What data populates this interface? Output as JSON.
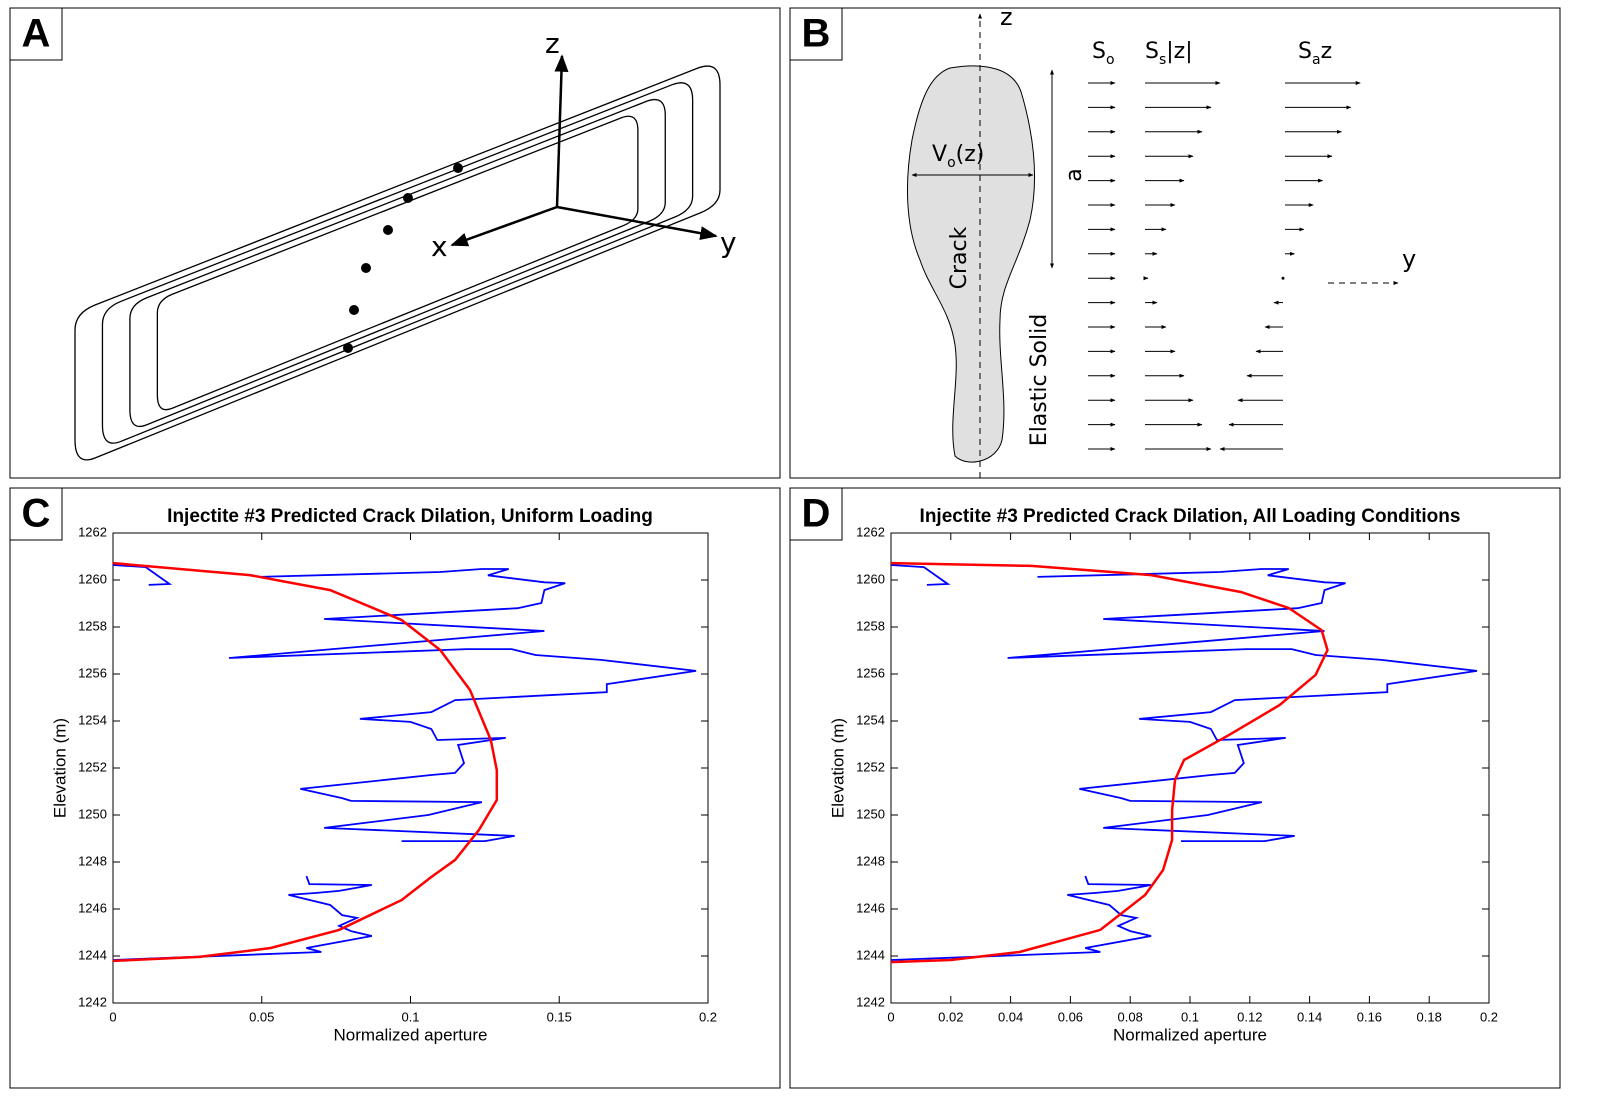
{
  "panels": {
    "a": {
      "label": "A",
      "z": "z",
      "x": "x",
      "y": "y"
    },
    "b": {
      "label": "B",
      "z": "z",
      "y": "y",
      "a": "a",
      "crack": "Crack",
      "solid": "Elastic Solid",
      "v": {
        "base": "V",
        "sub": "o",
        "tail": "(z)"
      },
      "s_o": {
        "base": "S",
        "sub": "o"
      },
      "s_s": {
        "base": "S",
        "sub": "s",
        "tail": "|z|"
      },
      "s_a": {
        "base": "S",
        "sub": "a",
        "tail": "z"
      }
    },
    "c": {
      "label": "C"
    },
    "d": {
      "label": "D"
    }
  },
  "chart_data": [
    {
      "type": "line",
      "title": "Injectite #3 Predicted Crack Dilation, Uniform Loading",
      "xlabel": "Normalized aperture",
      "ylabel": "Elevation (m)",
      "xlim": [
        0,
        0.2
      ],
      "ylim": [
        1242,
        1262
      ],
      "xticks": [
        0,
        0.05,
        0.1,
        0.15,
        0.2
      ],
      "yticks": [
        1242,
        1244,
        1246,
        1248,
        1250,
        1252,
        1254,
        1256,
        1258,
        1260,
        1262
      ],
      "series": [
        {
          "color": "#0000ff",
          "x": [
            0,
            0.011,
            0.019,
            0.012,
            null,
            0.049,
            0.11,
            0.124,
            0.133,
            0.126,
            0.145,
            0.152,
            0.145,
            0.144,
            0.136,
            0.071,
            0.145,
            0.039,
            0.119,
            0.134,
            0.142,
            0.164,
            0.196,
            0.166,
            0.166,
            0.115,
            0.107,
            0.083,
            0.1,
            0.107,
            0.109,
            0.132,
            0.116,
            0.118,
            0.115,
            0.107,
            0.063,
            0.077,
            0.08,
            0.124,
            0.106,
            0.071,
            0.135,
            0.125,
            0.097,
            null,
            0.065,
            0.066,
            0.087,
            0.076,
            0.068,
            0.059,
            0.073,
            0.077,
            0.082,
            0.076,
            0.08,
            0.087,
            0.065,
            0.07,
            0
          ],
          "values": [
            1260.64,
            1260.55,
            1259.83,
            1259.79,
            null,
            1260.13,
            1260.34,
            1260.47,
            1260.47,
            1260.2,
            1259.9,
            1259.87,
            1259.57,
            1259.02,
            1258.8,
            1258.34,
            1257.83,
            1256.68,
            1257.06,
            1257.06,
            1256.81,
            1256.6,
            1256.13,
            1255.57,
            1255.23,
            1254.89,
            1254.38,
            1254.09,
            1253.96,
            1253.66,
            1253.19,
            1253.28,
            1252.98,
            1252.21,
            1251.79,
            1251.7,
            1251.11,
            1250.72,
            1250.6,
            1250.55,
            1250.0,
            1249.45,
            1249.11,
            1248.89,
            1248.89,
            null,
            1247.4,
            1247.06,
            1247.02,
            1246.77,
            1246.68,
            1246.6,
            1246.17,
            1245.74,
            1245.62,
            1245.28,
            1245.06,
            1244.85,
            1244.34,
            1244.17,
            1243.83
          ]
        },
        {
          "color": "#ff0000",
          "x": [
            0,
            0.046,
            0.073,
            0.097,
            0.11,
            0.12,
            0.127,
            0.129,
            0.129,
            0.123,
            0.115,
            0.107,
            0.097,
            0.076,
            0.053,
            0.029,
            0
          ],
          "values": [
            1260.72,
            1260.21,
            1259.57,
            1258.3,
            1257.02,
            1255.32,
            1253.19,
            1251.91,
            1250.64,
            1249.36,
            1248.09,
            1247.36,
            1246.38,
            1245.11,
            1244.34,
            1243.96,
            1243.79
          ]
        }
      ]
    },
    {
      "type": "line",
      "title": "Injectite #3 Predicted Crack Dilation, All Loading Conditions",
      "xlabel": "Normalized aperture",
      "ylabel": "Elevation (m)",
      "xlim": [
        0,
        0.2
      ],
      "ylim": [
        1242,
        1262
      ],
      "xticks": [
        0,
        0.02,
        0.04,
        0.06,
        0.08,
        0.1,
        0.12,
        0.14,
        0.16,
        0.18,
        0.2
      ],
      "yticks": [
        1242,
        1244,
        1246,
        1248,
        1250,
        1252,
        1254,
        1256,
        1258,
        1260,
        1262
      ],
      "series": [
        {
          "color": "#0000ff",
          "x": [
            0,
            0.011,
            0.019,
            0.012,
            null,
            0.049,
            0.11,
            0.124,
            0.133,
            0.126,
            0.145,
            0.152,
            0.145,
            0.144,
            0.136,
            0.071,
            0.145,
            0.039,
            0.119,
            0.134,
            0.142,
            0.164,
            0.196,
            0.166,
            0.166,
            0.115,
            0.107,
            0.083,
            0.1,
            0.107,
            0.109,
            0.132,
            0.116,
            0.118,
            0.115,
            0.107,
            0.063,
            0.077,
            0.08,
            0.124,
            0.106,
            0.071,
            0.135,
            0.125,
            0.097,
            null,
            0.065,
            0.066,
            0.087,
            0.076,
            0.068,
            0.059,
            0.073,
            0.077,
            0.082,
            0.076,
            0.08,
            0.087,
            0.065,
            0.07,
            0
          ],
          "values": [
            1260.64,
            1260.55,
            1259.83,
            1259.79,
            null,
            1260.13,
            1260.34,
            1260.47,
            1260.47,
            1260.2,
            1259.9,
            1259.87,
            1259.57,
            1259.02,
            1258.8,
            1258.34,
            1257.83,
            1256.68,
            1257.06,
            1257.06,
            1256.81,
            1256.6,
            1256.13,
            1255.57,
            1255.23,
            1254.89,
            1254.38,
            1254.09,
            1253.96,
            1253.66,
            1253.19,
            1253.28,
            1252.98,
            1252.21,
            1251.79,
            1251.7,
            1251.11,
            1250.72,
            1250.6,
            1250.55,
            1250.0,
            1249.45,
            1249.11,
            1248.89,
            1248.89,
            null,
            1247.4,
            1247.06,
            1247.02,
            1246.77,
            1246.68,
            1246.6,
            1246.17,
            1245.74,
            1245.62,
            1245.28,
            1245.06,
            1244.85,
            1244.34,
            1244.17,
            1243.83
          ]
        },
        {
          "color": "#ff0000",
          "x": [
            0,
            0.047,
            0.087,
            0.117,
            0.133,
            0.144,
            0.146,
            0.142,
            0.13,
            0.113,
            0.098,
            0.095,
            0.094,
            0.094,
            0.091,
            0.085,
            0.07,
            0.043,
            0.02,
            0
          ],
          "values": [
            1260.72,
            1260.6,
            1260.21,
            1259.49,
            1258.81,
            1257.87,
            1257.02,
            1255.96,
            1254.68,
            1253.4,
            1252.34,
            1251.49,
            1250.21,
            1248.94,
            1247.66,
            1246.6,
            1245.11,
            1244.17,
            1243.83,
            1243.74
          ]
        }
      ]
    }
  ]
}
